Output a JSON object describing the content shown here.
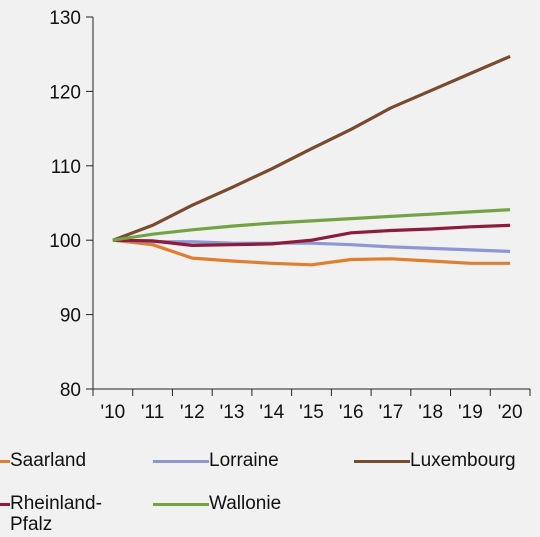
{
  "chart_data": {
    "type": "line",
    "title": "",
    "xlabel": "",
    "ylabel": "",
    "categories": [
      "'10",
      "'11",
      "'12",
      "'13",
      "'14",
      "'15",
      "'16",
      "'17",
      "'18",
      "'19",
      "'20"
    ],
    "ylim": [
      80,
      130
    ],
    "yticks": [
      80,
      90,
      100,
      110,
      120,
      130
    ],
    "grid": false,
    "legend_position": "bottom",
    "series": [
      {
        "name": "Saarland",
        "color": "#e07e2e",
        "values": [
          100,
          99.4,
          97.6,
          97.2,
          96.9,
          96.7,
          97.4,
          97.5,
          97.2,
          96.9,
          96.9
        ]
      },
      {
        "name": "Lorraine",
        "color": "#8e97d3",
        "values": [
          100,
          99.8,
          99.8,
          99.6,
          99.6,
          99.6,
          99.4,
          99.1,
          98.9,
          98.7,
          98.5
        ]
      },
      {
        "name": "Luxembourg",
        "color": "#7a4a2e",
        "values": [
          100,
          102,
          104.7,
          107.1,
          109.6,
          112.3,
          114.9,
          117.8,
          120.1,
          122.4,
          124.7
        ]
      },
      {
        "name": "Rheinland-Pfalz",
        "label_lines": [
          "Rheinland-",
          "Pfalz"
        ],
        "color": "#8c1c3a",
        "values": [
          100,
          99.9,
          99.3,
          99.4,
          99.5,
          100.0,
          101.0,
          101.3,
          101.5,
          101.8,
          102.0
        ]
      },
      {
        "name": "Wallonie",
        "color": "#73a345",
        "values": [
          100,
          100.8,
          101.4,
          101.9,
          102.3,
          102.6,
          102.9,
          103.2,
          103.5,
          103.8,
          104.1
        ]
      }
    ]
  }
}
